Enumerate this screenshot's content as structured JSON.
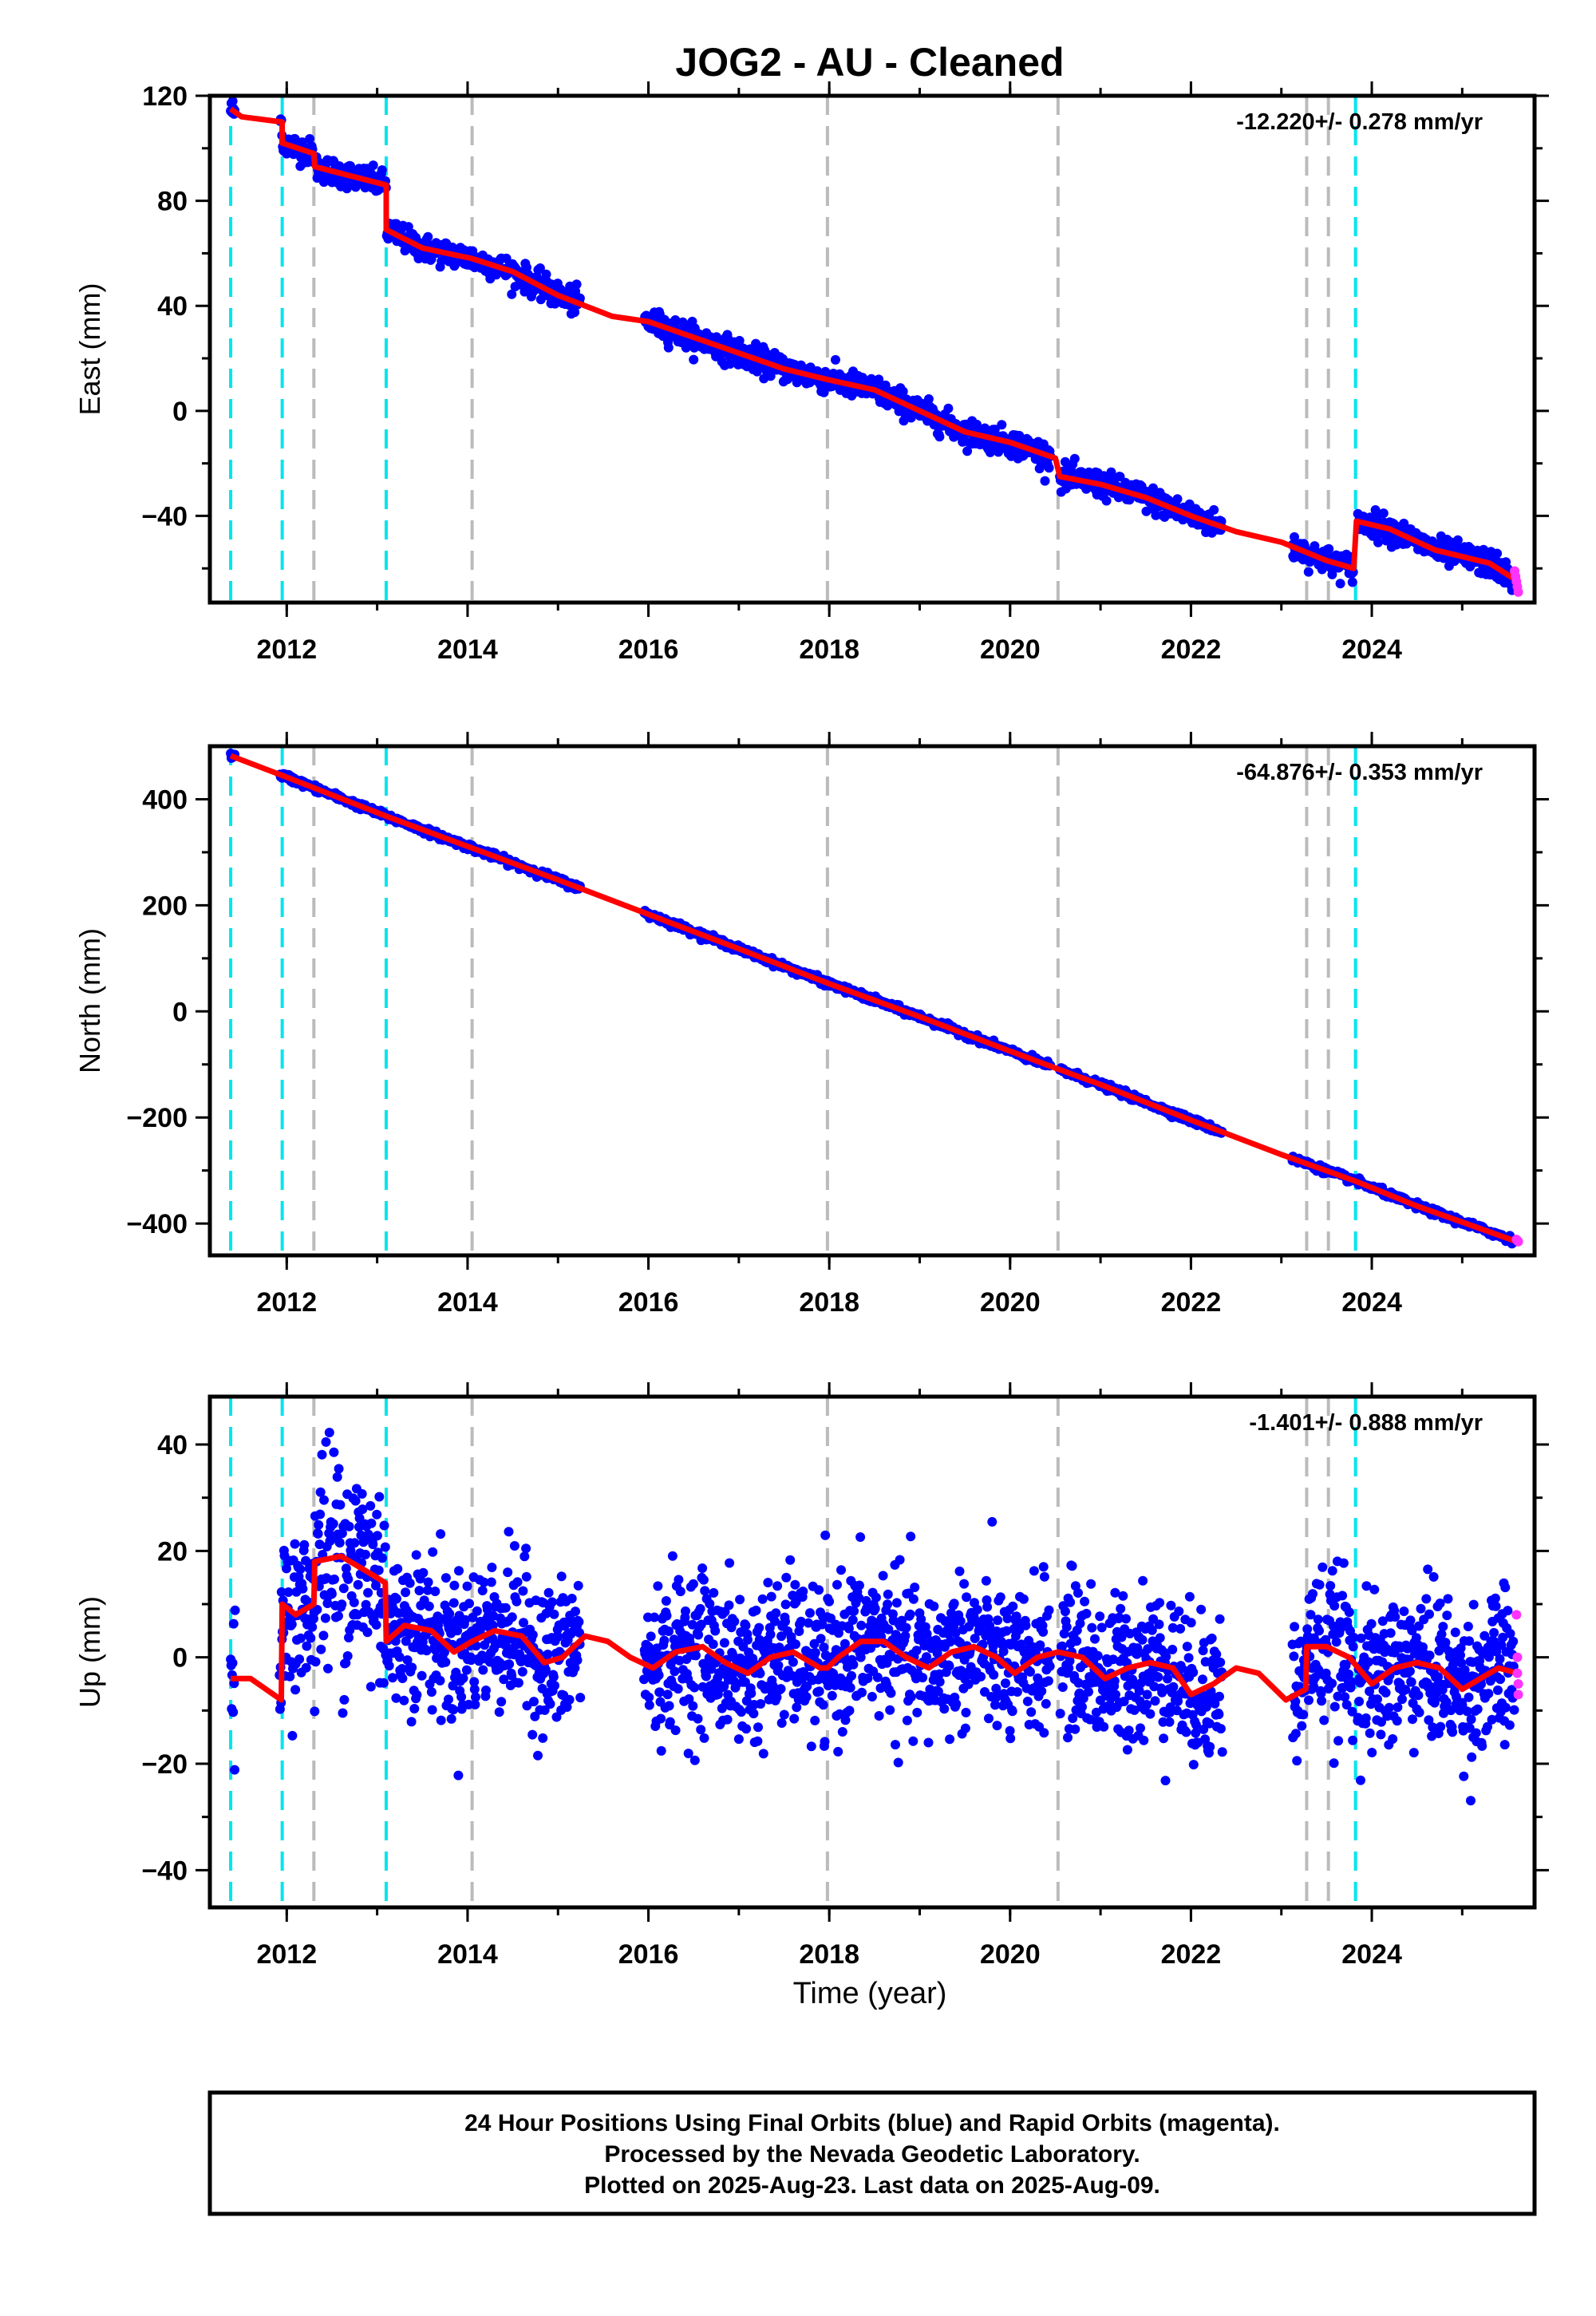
{
  "title": "JOG2  - AU - Cleaned",
  "footer_lines": [
    "24 Hour Positions Using Final Orbits (blue) and Rapid Orbits (magenta).",
    "Processed by the Nevada Geodetic Laboratory.",
    "Plotted on 2025-Aug-23. Last data on 2025-Aug-09."
  ],
  "colors": {
    "final": "#0000ff",
    "rapid": "#ff33ff",
    "model": "#ff0000",
    "equipment_change": "#00e5ee",
    "earthquake": "#bbbbbb"
  },
  "chart_data": [
    {
      "type": "scatter",
      "ylabel": "East (mm)",
      "rate": "-12.220+/- 0.278 mm/yr",
      "xlim": [
        2011.15,
        2025.8
      ],
      "ylim": [
        -73,
        120
      ],
      "yticks": [
        120,
        80,
        40,
        0,
        -40
      ],
      "xticks": [
        2012,
        2014,
        2016,
        2018,
        2020,
        2022,
        2024
      ],
      "cyan_lines": [
        2011.38,
        2011.95,
        2013.1,
        2023.82
      ],
      "gray_lines": [
        2012.3,
        2014.05,
        2017.98,
        2020.53,
        2023.28,
        2023.52
      ],
      "data_gaps": [
        [
          2011.43,
          2011.92
        ],
        [
          2015.25,
          2015.95
        ],
        [
          2020.45,
          2020.55
        ],
        [
          2022.35,
          2023.12
        ],
        [
          2023.8,
          2023.84
        ]
      ],
      "model": [
        [
          2011.38,
          115
        ],
        [
          2011.5,
          112
        ],
        [
          2011.95,
          110
        ],
        [
          2011.95,
          102
        ],
        [
          2012.3,
          98
        ],
        [
          2012.31,
          93
        ],
        [
          2013.1,
          86
        ],
        [
          2013.1,
          69
        ],
        [
          2013.5,
          62
        ],
        [
          2014.05,
          58
        ],
        [
          2014.5,
          53
        ],
        [
          2015.0,
          44
        ],
        [
          2015.3,
          40
        ],
        [
          2015.6,
          36
        ],
        [
          2016.0,
          34
        ],
        [
          2016.5,
          28
        ],
        [
          2017.0,
          22
        ],
        [
          2017.5,
          16
        ],
        [
          2017.97,
          12
        ],
        [
          2018.5,
          8
        ],
        [
          2019.0,
          0
        ],
        [
          2019.5,
          -8
        ],
        [
          2020.0,
          -12
        ],
        [
          2020.5,
          -18
        ],
        [
          2020.55,
          -25
        ],
        [
          2021.0,
          -28
        ],
        [
          2021.5,
          -33
        ],
        [
          2022.0,
          -40
        ],
        [
          2022.5,
          -46
        ],
        [
          2023.0,
          -50
        ],
        [
          2023.5,
          -57
        ],
        [
          2023.8,
          -60
        ],
        [
          2023.83,
          -42
        ],
        [
          2024.2,
          -45
        ],
        [
          2024.7,
          -53
        ],
        [
          2025.3,
          -58
        ],
        [
          2025.62,
          -65
        ]
      ],
      "scatter_spread": 2.5,
      "rapid_points": [
        [
          2025.58,
          -61
        ],
        [
          2025.59,
          -63
        ],
        [
          2025.6,
          -65
        ],
        [
          2025.61,
          -67
        ],
        [
          2025.62,
          -69
        ]
      ]
    },
    {
      "type": "scatter",
      "ylabel": "North (mm)",
      "rate": "-64.876+/- 0.353 mm/yr",
      "xlim": [
        2011.15,
        2025.8
      ],
      "ylim": [
        -460,
        500
      ],
      "yticks": [
        400,
        200,
        0,
        -200,
        -400
      ],
      "xticks": [
        2012,
        2014,
        2016,
        2018,
        2020,
        2022,
        2024
      ],
      "cyan_lines": [
        2011.38,
        2011.95,
        2013.1,
        2023.82
      ],
      "gray_lines": [
        2012.3,
        2014.05,
        2017.98,
        2020.53,
        2023.28,
        2023.52
      ],
      "data_gaps": [
        [
          2011.43,
          2011.92
        ],
        [
          2015.25,
          2015.95
        ],
        [
          2020.45,
          2020.55
        ],
        [
          2022.35,
          2023.12
        ],
        [
          2023.8,
          2023.84
        ]
      ],
      "model": [
        [
          2011.38,
          482
        ],
        [
          2011.95,
          445
        ],
        [
          2013.1,
          368
        ],
        [
          2014.05,
          308
        ],
        [
          2015.0,
          248
        ],
        [
          2016.0,
          183
        ],
        [
          2017.0,
          118
        ],
        [
          2018.0,
          52
        ],
        [
          2019.0,
          -10
        ],
        [
          2020.0,
          -75
        ],
        [
          2020.55,
          -110
        ],
        [
          2021.0,
          -138
        ],
        [
          2022.0,
          -205
        ],
        [
          2023.0,
          -270
        ],
        [
          2023.82,
          -320
        ],
        [
          2024.5,
          -367
        ],
        [
          2025.62,
          -435
        ]
      ],
      "scatter_spread": 3,
      "rapid_points": [
        [
          2025.6,
          -430
        ],
        [
          2025.61,
          -432
        ],
        [
          2025.62,
          -434
        ]
      ]
    },
    {
      "type": "scatter",
      "ylabel": "Up (mm)",
      "rate": "-1.401+/- 0.888 mm/yr",
      "xlim": [
        2011.15,
        2025.8
      ],
      "ylim": [
        -47,
        49
      ],
      "yticks": [
        40,
        20,
        0,
        -20,
        -40
      ],
      "xticks": [
        2012,
        2014,
        2016,
        2018,
        2020,
        2022,
        2024
      ],
      "cyan_lines": [
        2011.38,
        2011.95,
        2013.1,
        2023.82
      ],
      "gray_lines": [
        2012.3,
        2014.05,
        2017.98,
        2020.53,
        2023.28,
        2023.52
      ],
      "data_gaps": [
        [
          2011.43,
          2011.92
        ],
        [
          2015.25,
          2015.95
        ],
        [
          2020.45,
          2020.55
        ],
        [
          2022.35,
          2023.12
        ],
        [
          2023.8,
          2023.84
        ]
      ],
      "model": [
        [
          2011.38,
          -4
        ],
        [
          2011.6,
          -4
        ],
        [
          2011.94,
          -8
        ],
        [
          2011.95,
          10
        ],
        [
          2012.1,
          8
        ],
        [
          2012.3,
          10
        ],
        [
          2012.31,
          18
        ],
        [
          2012.6,
          19
        ],
        [
          2012.9,
          16
        ],
        [
          2013.09,
          14
        ],
        [
          2013.1,
          3
        ],
        [
          2013.3,
          6
        ],
        [
          2013.6,
          5
        ],
        [
          2013.85,
          1
        ],
        [
          2014.05,
          3
        ],
        [
          2014.3,
          5
        ],
        [
          2014.6,
          4
        ],
        [
          2014.85,
          -1
        ],
        [
          2015.05,
          0
        ],
        [
          2015.3,
          4
        ],
        [
          2015.55,
          3
        ],
        [
          2015.8,
          0
        ],
        [
          2016.05,
          -2
        ],
        [
          2016.3,
          1
        ],
        [
          2016.6,
          2
        ],
        [
          2016.85,
          -1
        ],
        [
          2017.1,
          -3
        ],
        [
          2017.35,
          0
        ],
        [
          2017.6,
          1
        ],
        [
          2017.9,
          -2
        ],
        [
          2017.98,
          -2
        ],
        [
          2018.1,
          0
        ],
        [
          2018.35,
          3
        ],
        [
          2018.6,
          3
        ],
        [
          2018.85,
          0
        ],
        [
          2019.1,
          -2
        ],
        [
          2019.35,
          1
        ],
        [
          2019.6,
          2
        ],
        [
          2019.85,
          0
        ],
        [
          2020.05,
          -3
        ],
        [
          2020.3,
          0
        ],
        [
          2020.53,
          1
        ],
        [
          2020.8,
          0
        ],
        [
          2021.05,
          -4
        ],
        [
          2021.3,
          -2
        ],
        [
          2021.55,
          -1
        ],
        [
          2021.8,
          -2
        ],
        [
          2022.0,
          -7
        ],
        [
          2022.25,
          -5
        ],
        [
          2022.5,
          -2
        ],
        [
          2022.75,
          -3
        ],
        [
          2023.05,
          -8
        ],
        [
          2023.27,
          -6
        ],
        [
          2023.28,
          2
        ],
        [
          2023.5,
          2
        ],
        [
          2023.75,
          0
        ],
        [
          2024.0,
          -5
        ],
        [
          2024.25,
          -2
        ],
        [
          2024.5,
          -1
        ],
        [
          2024.75,
          -2
        ],
        [
          2025.0,
          -6
        ],
        [
          2025.2,
          -4
        ],
        [
          2025.4,
          -2
        ],
        [
          2025.62,
          -3
        ]
      ],
      "scatter_spread": 7,
      "rapid_points": [
        [
          2025.6,
          8
        ],
        [
          2025.61,
          0
        ],
        [
          2025.61,
          -3
        ],
        [
          2025.62,
          -5
        ],
        [
          2025.62,
          -7
        ]
      ]
    }
  ],
  "xlabel": "Time (year)"
}
